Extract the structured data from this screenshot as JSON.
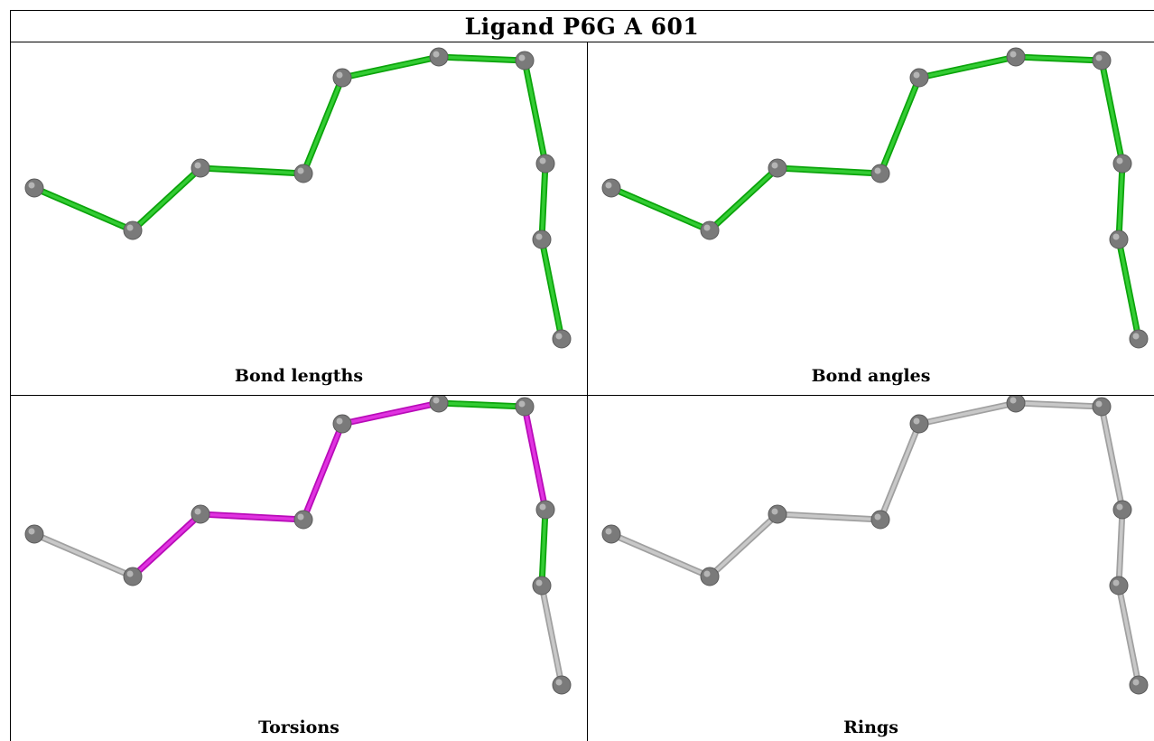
{
  "title": "Ligand P6G A 601",
  "panels": [
    {
      "caption": "Bond lengths",
      "bond_colors": [
        "green",
        "green",
        "green",
        "green",
        "green",
        "green",
        "green",
        "green",
        "green",
        "green",
        "green"
      ]
    },
    {
      "caption": "Bond angles",
      "bond_colors": [
        "green",
        "green",
        "green",
        "green",
        "green",
        "green",
        "green",
        "green",
        "green",
        "green",
        "green"
      ]
    },
    {
      "caption": "Torsions",
      "bond_colors": [
        "grey",
        "magenta",
        "magenta",
        "magenta",
        "magenta",
        "green",
        "magenta",
        "green",
        "grey",
        "grey",
        "grey"
      ]
    },
    {
      "caption": "Rings",
      "bond_colors": [
        "grey",
        "grey",
        "grey",
        "grey",
        "grey",
        "grey",
        "grey",
        "grey",
        "grey",
        "grey",
        "grey"
      ]
    }
  ],
  "colors": {
    "green": "#33cc33",
    "magenta": "#e033e0",
    "grey": "#c8c8c8",
    "atom": "#7a7a7a"
  }
}
